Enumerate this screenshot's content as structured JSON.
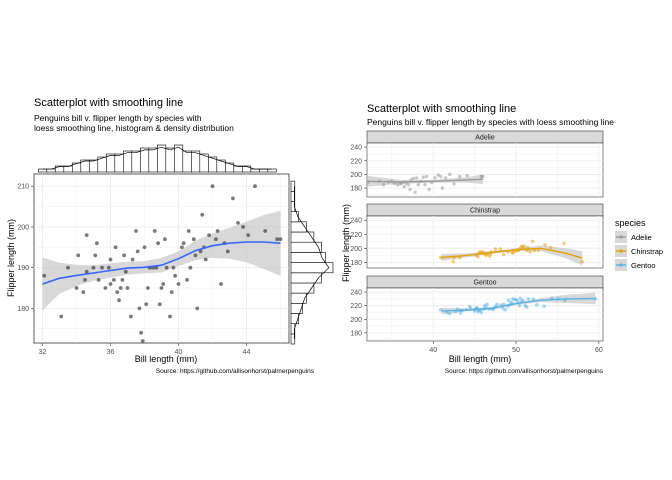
{
  "left": {
    "title": "Scatterplot with smoothing line",
    "subtitle_line1": "Penguins bill v. flipper length by species with",
    "subtitle_line2": "loess smoothing line, histogram & density distribution",
    "xlabel": "Bill length (mm)",
    "ylabel": "Flipper length (mm)",
    "caption": "Source: https://github.com/allisonhorst/palmerpenguins"
  },
  "right": {
    "title": "Scatterplot with smoothing line",
    "subtitle": "Penguins bill v. flipper length by species with loess smoothing line",
    "xlabel": "Bill length (mm)",
    "ylabel": "Flipper length (mm)",
    "caption": "Source: https://github.com/allisonhorst/palmerpenguins",
    "legend_title": "species"
  },
  "colors": {
    "points": "#333333",
    "smooth": "#3366FF",
    "band": "#BEBEBE",
    "Adelie": "#999999",
    "Chinstrap": "#E69F00",
    "Gentoo": "#56B4E9",
    "strip_fill": "#D9D9D9",
    "grid": "#EBEBEB"
  },
  "chart_data": [
    {
      "type": "scatter",
      "title": "Scatterplot with smoothing line",
      "xlabel": "Bill length (mm)",
      "ylabel": "Flipper length (mm)",
      "xlim": [
        31.5,
        46.5
      ],
      "ylim": [
        171.5,
        213
      ],
      "xticks": [
        32,
        36,
        40,
        44
      ],
      "yticks": [
        180,
        190,
        200,
        210
      ],
      "grid": true,
      "points": [
        [
          32.1,
          188
        ],
        [
          33.1,
          178
        ],
        [
          33.5,
          190
        ],
        [
          34,
          185
        ],
        [
          34.1,
          193
        ],
        [
          34.4,
          184
        ],
        [
          34.5,
          187
        ],
        [
          34.6,
          189
        ],
        [
          34.6,
          198
        ],
        [
          35,
          190
        ],
        [
          35.1,
          193
        ],
        [
          35.2,
          196
        ],
        [
          35.3,
          187
        ],
        [
          35.5,
          190
        ],
        [
          35.7,
          185
        ],
        [
          35.9,
          190
        ],
        [
          36,
          186
        ],
        [
          36,
          192
        ],
        [
          36.2,
          187
        ],
        [
          36.3,
          195
        ],
        [
          36.4,
          184
        ],
        [
          36.5,
          182
        ],
        [
          36.6,
          185
        ],
        [
          36.7,
          187
        ],
        [
          36.8,
          193
        ],
        [
          36.9,
          189
        ],
        [
          37,
          185
        ],
        [
          37.2,
          178
        ],
        [
          37.3,
          192
        ],
        [
          37.5,
          199
        ],
        [
          37.6,
          194
        ],
        [
          37.7,
          180
        ],
        [
          37.8,
          174
        ],
        [
          37.9,
          172
        ],
        [
          38,
          195
        ],
        [
          38.1,
          181
        ],
        [
          38.2,
          185
        ],
        [
          38.3,
          190
        ],
        [
          38.5,
          190
        ],
        [
          38.6,
          199
        ],
        [
          38.7,
          190
        ],
        [
          38.8,
          196
        ],
        [
          38.9,
          181
        ],
        [
          39,
          185
        ],
        [
          39.1,
          186
        ],
        [
          39.2,
          197
        ],
        [
          39.3,
          190
        ],
        [
          39.5,
          178
        ],
        [
          39.6,
          184
        ],
        [
          39.7,
          190
        ],
        [
          39.8,
          188
        ],
        [
          40,
          186
        ],
        [
          40.2,
          195
        ],
        [
          40.3,
          196
        ],
        [
          40.5,
          187
        ],
        [
          40.6,
          199
        ],
        [
          40.7,
          190
        ],
        [
          40.9,
          197
        ],
        [
          41,
          193
        ],
        [
          41.1,
          180
        ],
        [
          41.3,
          194
        ],
        [
          41.4,
          203
        ],
        [
          41.5,
          195
        ],
        [
          41.6,
          192
        ],
        [
          41.8,
          198
        ],
        [
          42,
          210
        ],
        [
          42.2,
          197
        ],
        [
          42.3,
          199
        ],
        [
          42.5,
          186
        ],
        [
          42.7,
          196
        ],
        [
          42.9,
          194
        ],
        [
          43.2,
          207
        ],
        [
          43.5,
          201
        ],
        [
          43.8,
          200
        ],
        [
          44.1,
          198
        ],
        [
          44.5,
          210
        ],
        [
          45.1,
          199
        ],
        [
          45.8,
          197
        ],
        [
          46,
          197
        ]
      ],
      "smooth": {
        "x": [
          32,
          33,
          34,
          35,
          36,
          37,
          38,
          39,
          40,
          41,
          42,
          43,
          44,
          45,
          46
        ],
        "y": [
          186,
          187.4,
          188.1,
          188.7,
          189.3,
          189.9,
          190.1,
          190.6,
          192.2,
          194.2,
          195.4,
          196,
          196.3,
          196.3,
          196
        ]
      },
      "band": {
        "lower": [
          179.5,
          183.6,
          185.5,
          186.8,
          187.5,
          188.3,
          188.6,
          188.8,
          190.4,
          191.8,
          192.4,
          192.2,
          191.3,
          189.7,
          188
        ],
        "upper": [
          192.5,
          191.2,
          190.7,
          190.6,
          191.1,
          191.5,
          191.6,
          192.4,
          194,
          196.6,
          198.4,
          199.8,
          201.3,
          202.9,
          204
        ]
      },
      "marginal_x_hist": {
        "x": [
          32,
          32.5,
          33,
          33.5,
          34,
          34.5,
          35,
          35.5,
          36,
          36.5,
          37,
          37.5,
          38,
          38.5,
          39,
          39.5,
          40,
          40.5,
          41,
          41.5,
          42,
          42.5,
          43,
          43.5,
          44,
          44.5,
          45,
          45.5
        ],
        "counts": [
          1,
          1,
          2,
          2,
          3,
          4,
          4,
          5,
          6,
          6,
          7,
          7,
          8,
          8,
          9,
          8,
          9,
          7,
          7,
          6,
          5,
          4,
          3,
          2,
          2,
          1,
          1,
          1
        ]
      },
      "marginal_y_hist": {
        "y": [
          172.5,
          175,
          177.5,
          180,
          182.5,
          185,
          187.5,
          190,
          192.5,
          195,
          197.5,
          200,
          202.5,
          205,
          207.5,
          210
        ],
        "counts": [
          1,
          1,
          2,
          3,
          4,
          6,
          8,
          11,
          9,
          8,
          6,
          4,
          2,
          1,
          1,
          1
        ]
      }
    },
    {
      "type": "scatter",
      "title": "Scatterplot with smoothing line",
      "xlabel": "Bill length (mm)",
      "ylabel": "Flipper length (mm)",
      "xlim": [
        32,
        60.5
      ],
      "xticks": [
        40,
        50,
        60
      ],
      "grid": true,
      "legend": "right",
      "panels": [
        {
          "name": "Adelie",
          "ylim": [
            167,
            246
          ],
          "yticks": [
            180,
            200,
            220,
            240
          ],
          "points": [
            [
              32.1,
              188
            ],
            [
              33.5,
              190
            ],
            [
              34,
              185
            ],
            [
              34.6,
              189
            ],
            [
              35,
              190
            ],
            [
              35.3,
              187
            ],
            [
              35.7,
              185
            ],
            [
              36,
              186
            ],
            [
              36.2,
              187
            ],
            [
              36.5,
              182
            ],
            [
              36.7,
              187
            ],
            [
              37,
              185
            ],
            [
              37.2,
              178
            ],
            [
              37.3,
              192
            ],
            [
              37.6,
              194
            ],
            [
              37.8,
              174
            ],
            [
              38,
              195
            ],
            [
              38.2,
              185
            ],
            [
              38.5,
              190
            ],
            [
              38.8,
              196
            ],
            [
              39,
              185
            ],
            [
              39.2,
              197
            ],
            [
              39.5,
              178
            ],
            [
              39.8,
              188
            ],
            [
              40.2,
              195
            ],
            [
              40.6,
              199
            ],
            [
              40.9,
              197
            ],
            [
              41.1,
              180
            ],
            [
              41.5,
              195
            ],
            [
              42,
              200
            ],
            [
              42.5,
              186
            ],
            [
              43.2,
              197
            ],
            [
              44.1,
              198
            ],
            [
              45.8,
              197
            ],
            [
              46,
              197
            ]
          ],
          "smooth": {
            "x": [
              32,
              36,
              40,
              44,
              46
            ],
            "y": [
              190,
              189,
              190,
              192,
              193
            ]
          },
          "band": {
            "lower": [
              182,
              186,
              188,
              188,
              186
            ],
            "upper": [
              198,
              192,
              192,
              196,
              200
            ]
          }
        },
        {
          "name": "Chinstrap",
          "ylim": [
            172,
            246
          ],
          "yticks": [
            180,
            200,
            220,
            240
          ],
          "points": [
            [
              40.9,
              187
            ],
            [
              42.4,
              181
            ],
            [
              42.5,
              187
            ],
            [
              43.2,
              187
            ],
            [
              45.2,
              190
            ],
            [
              45.4,
              188
            ],
            [
              45.6,
              194
            ],
            [
              45.7,
              195
            ],
            [
              46,
              195
            ],
            [
              46.1,
              192
            ],
            [
              46.4,
              190
            ],
            [
              46.5,
              192
            ],
            [
              46.8,
              189
            ],
            [
              46.9,
              192
            ],
            [
              47,
              195
            ],
            [
              47.5,
              199
            ],
            [
              48.1,
              199
            ],
            [
              48.5,
              191
            ],
            [
              49,
              195
            ],
            [
              49.3,
              196
            ],
            [
              49.6,
              193
            ],
            [
              49.7,
              195
            ],
            [
              50,
              196
            ],
            [
              50.2,
              198
            ],
            [
              50.3,
              197
            ],
            [
              50.5,
              200
            ],
            [
              50.7,
              203
            ],
            [
              50.8,
              201
            ],
            [
              51,
              203
            ],
            [
              51.3,
              197
            ],
            [
              51.4,
              201
            ],
            [
              51.7,
              195
            ],
            [
              52,
              210
            ],
            [
              52.2,
              197
            ],
            [
              52.7,
              197
            ],
            [
              53.5,
              205
            ],
            [
              54.2,
              201
            ],
            [
              55.8,
              207
            ],
            [
              58,
              181
            ]
          ],
          "smooth": {
            "x": [
              41,
              44,
              47,
              50,
              53,
              56,
              58
            ],
            "y": [
              187,
              190,
              194,
              198,
              200,
              193,
              186
            ]
          },
          "band": {
            "lower": [
              182,
              187,
              192,
              196,
              196,
              186,
              176
            ],
            "upper": [
              192,
              193,
              196,
              200,
              204,
              200,
              196
            ]
          }
        },
        {
          "name": "Gentoo",
          "ylim": [
            168,
            246
          ],
          "yticks": [
            180,
            200,
            220,
            240
          ],
          "points": [
            [
              40.9,
              214
            ],
            [
              41.7,
              210
            ],
            [
              42,
              208
            ],
            [
              42.7,
              211
            ],
            [
              42.9,
              215
            ],
            [
              43.2,
              213
            ],
            [
              43.3,
              209
            ],
            [
              43.5,
              213
            ],
            [
              44,
              214
            ],
            [
              44.4,
              219
            ],
            [
              44.5,
              216
            ],
            [
              45,
              212
            ],
            [
              45.1,
              215
            ],
            [
              45.2,
              216
            ],
            [
              45.3,
              217
            ],
            [
              45.4,
              211
            ],
            [
              45.5,
              213
            ],
            [
              45.7,
              214
            ],
            [
              45.8,
              210
            ],
            [
              46.1,
              215
            ],
            [
              46.2,
              220
            ],
            [
              46.4,
              217
            ],
            [
              46.5,
              222
            ],
            [
              46.8,
              215
            ],
            [
              47.2,
              214
            ],
            [
              47.3,
              216
            ],
            [
              47.5,
              219
            ],
            [
              47.7,
              222
            ],
            [
              48.2,
              221
            ],
            [
              48.4,
              216
            ],
            [
              48.5,
              222
            ],
            [
              48.7,
              214
            ],
            [
              49,
              219
            ],
            [
              49.1,
              228
            ],
            [
              49.2,
              221
            ],
            [
              49.4,
              225
            ],
            [
              49.5,
              223
            ],
            [
              49.6,
              230
            ],
            [
              49.8,
              229
            ],
            [
              50,
              229
            ],
            [
              50.2,
              227
            ],
            [
              50.4,
              220
            ],
            [
              50.5,
              231
            ],
            [
              50.7,
              226
            ],
            [
              50.8,
              228
            ],
            [
              51.1,
              220
            ],
            [
              51.3,
              218
            ],
            [
              51.5,
              230
            ],
            [
              52.1,
              230
            ],
            [
              52.5,
              221
            ],
            [
              53.4,
              219
            ],
            [
              54.3,
              231
            ],
            [
              55.1,
              230
            ],
            [
              55.9,
              228
            ],
            [
              59.6,
              230
            ]
          ],
          "smooth": {
            "x": [
              41,
              44,
              47,
              50,
              53,
              56,
              59.6
            ],
            "y": [
              212,
              213.5,
              216,
              223,
              228,
              230,
              230.5
            ]
          },
          "band": {
            "lower": [
              207,
              211.5,
              214,
              221,
              225,
              224,
              222
            ],
            "upper": [
              217,
              215.5,
              218,
              225,
              231,
              236,
              239
            ]
          }
        }
      ],
      "legend_entries": [
        "Adelie",
        "Chinstrap",
        "Gentoo"
      ]
    }
  ]
}
